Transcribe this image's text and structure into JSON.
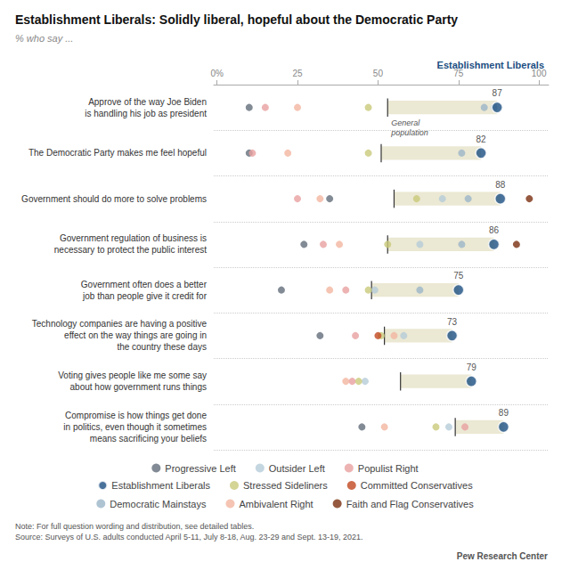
{
  "chart_data": {
    "type": "scatter",
    "title": "Establishment Liberals: Solidly liberal, hopeful about the Democratic Party",
    "subtitle": "% who say ...",
    "categories": [
      "Approve of the way Joe Biden\nis handling his job as president",
      "The Democratic Party makes me feel hopeful",
      "Government should do more to solve problems",
      "Government regulation of business is\nnecessary to protect the public interest",
      "Government often does a better\njob than people give it credit for",
      "Technology companies are having a positive\neffect on the way things are going in\nthe country these days",
      "Voting gives people like me some say\nabout how government runs things",
      "Compromise is how things get done\nin politics, even though it sometimes\nmeans sacrificing your beliefs"
    ],
    "series": [
      {
        "name": "Progressive Left",
        "color": "#636e7b",
        "values": [
          10,
          10,
          35,
          27,
          20,
          32,
          null,
          45
        ]
      },
      {
        "name": "Outsider Left",
        "color": "#b5ccd8",
        "values": [
          86,
          null,
          70,
          63,
          49,
          58,
          46,
          72
        ]
      },
      {
        "name": "Populist Right",
        "color": "#e8a0a0",
        "values": [
          15,
          11,
          25,
          33,
          40,
          43,
          42,
          77
        ]
      },
      {
        "name": "Establishment Liberals",
        "color": "#1c4f82",
        "values": [
          87,
          82,
          88,
          86,
          75,
          73,
          79,
          89
        ],
        "data_labels": true
      },
      {
        "name": "Stressed Sideliners",
        "color": "#c9c97a",
        "values": [
          47,
          47,
          62,
          53,
          47,
          51,
          44,
          68
        ]
      },
      {
        "name": "Committed Conservatives",
        "color": "#c04820",
        "values": [
          null,
          null,
          null,
          null,
          null,
          50,
          null,
          null
        ]
      },
      {
        "name": "Democratic Mainstays",
        "color": "#9bb5c8",
        "values": [
          83,
          76,
          78,
          76,
          63,
          null,
          null,
          null
        ]
      },
      {
        "name": "Ambivalent Right",
        "color": "#f2b5a0",
        "values": [
          25,
          22,
          32,
          38,
          35,
          55,
          40,
          52
        ]
      },
      {
        "name": "Faith and Flag Conservatives",
        "color": "#7a3010",
        "values": [
          null,
          null,
          97,
          93,
          null,
          null,
          null,
          null
        ]
      }
    ],
    "general_population": [
      53,
      51,
      55,
      53,
      48,
      52,
      57,
      74
    ],
    "annotations": [
      "Establishment Liberals",
      "General\npopulation"
    ],
    "xlim": [
      -1,
      103
    ],
    "xticks": [
      {
        "value": 0,
        "label": "0%"
      },
      25,
      50,
      75,
      100
    ],
    "orientation": "horizontal",
    "grid": true,
    "legend": "bottom",
    "note": "Note: For full question wording and distribution, see detailed tables.\nSource: Surveys of U.S. adults conducted April 5-11, July 8-18, Aug. 23-29 and Sept. 13-19, 2021.",
    "source": "Pew Research Center"
  }
}
